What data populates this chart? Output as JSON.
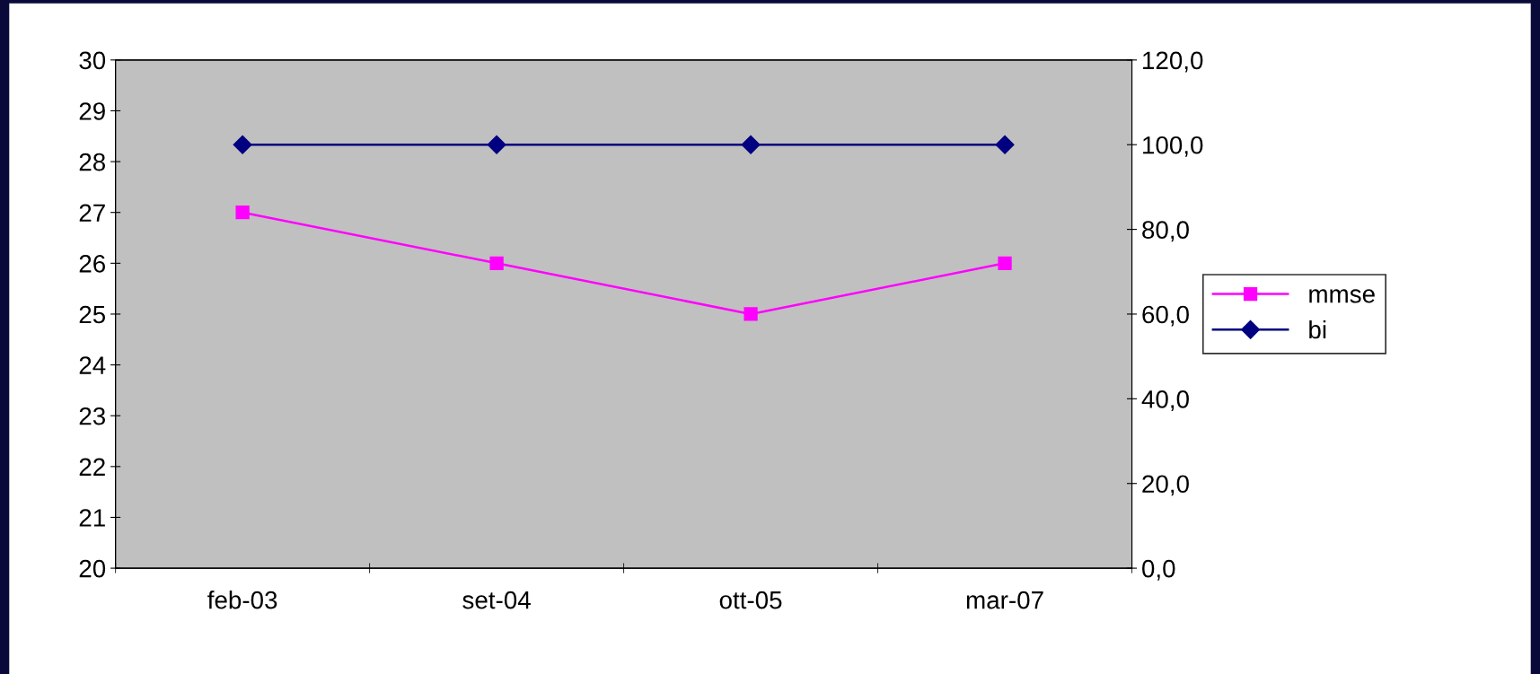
{
  "chart_data": {
    "type": "line",
    "categories": [
      "feb-03",
      "set-04",
      "ott-05",
      "mar-07"
    ],
    "series": [
      {
        "name": "mmse",
        "color": "#ff00ff",
        "marker": "square",
        "values": [
          27,
          26,
          25,
          26
        ]
      },
      {
        "name": "bi",
        "color": "#000080",
        "marker": "diamond",
        "axis": "y2",
        "values": [
          100,
          100,
          100,
          100
        ]
      }
    ],
    "ylim": [
      20,
      30
    ],
    "yticks": [
      20,
      21,
      22,
      23,
      24,
      25,
      26,
      27,
      28,
      29,
      30
    ],
    "y2lim": [
      0,
      120
    ],
    "y2ticks": [
      {
        "value": 0,
        "label": "0,0"
      },
      {
        "value": 20,
        "label": "20,0"
      },
      {
        "value": 40,
        "label": "40,0"
      },
      {
        "value": 60,
        "label": "60,0"
      },
      {
        "value": 80,
        "label": "80,0"
      },
      {
        "value": 100,
        "label": "100,0"
      },
      {
        "value": 120,
        "label": "120,0"
      }
    ],
    "legend": "right",
    "grid": false,
    "line_style": "solid"
  }
}
